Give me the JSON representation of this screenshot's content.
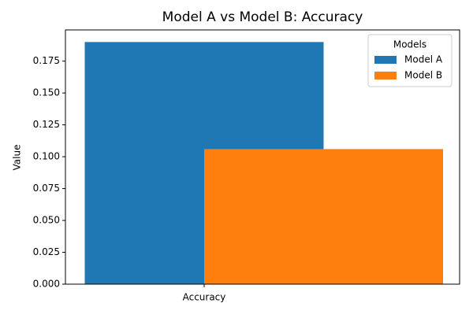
{
  "chart_data": {
    "type": "bar",
    "title": "Model A vs Model B: Accuracy",
    "ylabel": "Value",
    "categories": [
      "Accuracy"
    ],
    "series": [
      {
        "name": "Model A",
        "color": "#1f77b4",
        "values": [
          0.19
        ]
      },
      {
        "name": "Model B",
        "color": "#ff7f0e",
        "values": [
          0.106
        ]
      }
    ],
    "ylim": [
      0,
      0.1995
    ],
    "yticks": [
      {
        "value": 0,
        "label": "0.000"
      },
      {
        "value": 0.025,
        "label": "0.025"
      },
      {
        "value": 0.05,
        "label": "0.050"
      },
      {
        "value": 0.075,
        "label": "0.075"
      },
      {
        "value": 0.1,
        "label": "0.100"
      },
      {
        "value": 0.125,
        "label": "0.125"
      },
      {
        "value": 0.15,
        "label": "0.150"
      },
      {
        "value": 0.175,
        "label": "0.175"
      }
    ],
    "legend": {
      "title": "Models",
      "position": "upper right"
    }
  }
}
